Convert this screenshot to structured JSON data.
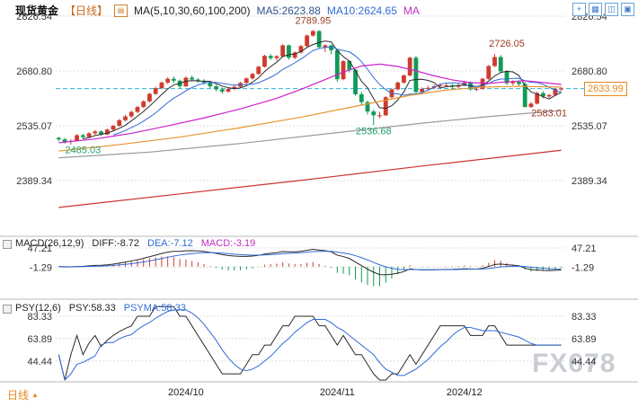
{
  "header": {
    "title": "现货黄金",
    "period": "【日线】",
    "snapshot_glyph": "▤",
    "ma_settings": "MA(5,10,30,60,100,200)",
    "ma5": "MA5:2623.88",
    "ma10": "MA10:2624.65",
    "ma_more": "MA"
  },
  "toolbar": {
    "icons": [
      {
        "name": "add-indicator-icon",
        "glyph": "+"
      },
      {
        "name": "grid-view-icon",
        "glyph": "▦"
      },
      {
        "name": "split-view-icon",
        "glyph": "◫"
      },
      {
        "name": "fullscreen-icon",
        "glyph": "▣"
      }
    ]
  },
  "price_box": {
    "value": "2633.99"
  },
  "macd_header": {
    "label": "MACD(26,12,9)",
    "diff": "DIFF:-8.72",
    "dea": "DEA:-7.12",
    "macd": "MACD:-3.19"
  },
  "psy_header": {
    "label": "PSY(12,6)",
    "psy": "PSY:58.33",
    "psyma": "PSYMA:58.33"
  },
  "footer": {
    "period": "日线",
    "arrow": "▲",
    "watermark": "FX678"
  },
  "chart_data": {
    "type": "candlestick",
    "title": "现货黄金 日线 (Spot Gold Daily)",
    "colors": {
      "up": "#cf3b2e",
      "down": "#129a57",
      "grid": "#dcdcdc",
      "axis_text": "#333333",
      "dashed_line": "#2ab2d9",
      "divider": "#b9b9b9"
    },
    "main": {
      "y_ticks": [
        2826.54,
        2680.8,
        2535.07,
        2389.34
      ],
      "y_range": [
        2826.54,
        2253.0
      ],
      "current_price": 2633.99,
      "annotations": [
        {
          "text": "2789.95",
          "index": 42,
          "price": 2806,
          "color": "#9c3a22"
        },
        {
          "text": "2726.05",
          "index": 74,
          "price": 2745,
          "color": "#9c3a22"
        },
        {
          "text": "2583.01",
          "index": 81,
          "price": 2560,
          "color": "#9c3a22"
        },
        {
          "text": "2536.68",
          "index": 52,
          "price": 2512,
          "color": "#1f9e6a"
        },
        {
          "text": "2485.03",
          "index": 4,
          "price": 2462,
          "color": "#1f9e6a"
        }
      ],
      "candles": [
        [
          2503,
          2506,
          2494,
          2499
        ],
        [
          2499,
          2503,
          2488,
          2493
        ],
        [
          2493,
          2499,
          2485,
          2495
        ],
        [
          2495,
          2513,
          2493,
          2510
        ],
        [
          2510,
          2514,
          2500,
          2505
        ],
        [
          2505,
          2518,
          2503,
          2515
        ],
        [
          2515,
          2524,
          2511,
          2520
        ],
        [
          2520,
          2523,
          2508,
          2512
        ],
        [
          2512,
          2528,
          2510,
          2525
        ],
        [
          2525,
          2538,
          2522,
          2535
        ],
        [
          2535,
          2553,
          2533,
          2550
        ],
        [
          2550,
          2564,
          2547,
          2560
        ],
        [
          2560,
          2575,
          2556,
          2572
        ],
        [
          2572,
          2588,
          2569,
          2585
        ],
        [
          2585,
          2603,
          2582,
          2600
        ],
        [
          2600,
          2623,
          2597,
          2620
        ],
        [
          2620,
          2639,
          2617,
          2635
        ],
        [
          2635,
          2653,
          2632,
          2650
        ],
        [
          2650,
          2664,
          2646,
          2660
        ],
        [
          2660,
          2666,
          2649,
          2655
        ],
        [
          2655,
          2658,
          2635,
          2640
        ],
        [
          2640,
          2666,
          2638,
          2663
        ],
        [
          2663,
          2669,
          2653,
          2658
        ],
        [
          2658,
          2662,
          2649,
          2655
        ],
        [
          2655,
          2659,
          2644,
          2650
        ],
        [
          2650,
          2653,
          2635,
          2640
        ],
        [
          2640,
          2644,
          2627,
          2632
        ],
        [
          2632,
          2637,
          2620,
          2626
        ],
        [
          2626,
          2637,
          2623,
          2633
        ],
        [
          2633,
          2643,
          2630,
          2639
        ],
        [
          2639,
          2652,
          2636,
          2649
        ],
        [
          2649,
          2664,
          2646,
          2661
        ],
        [
          2661,
          2676,
          2658,
          2673
        ],
        [
          2673,
          2695,
          2670,
          2692
        ],
        [
          2692,
          2724,
          2690,
          2721
        ],
        [
          2721,
          2726,
          2710,
          2715
        ],
        [
          2715,
          2723,
          2708,
          2720
        ],
        [
          2720,
          2752,
          2717,
          2749
        ],
        [
          2749,
          2751,
          2711,
          2716
        ],
        [
          2716,
          2733,
          2712,
          2730
        ],
        [
          2730,
          2750,
          2727,
          2747
        ],
        [
          2747,
          2778,
          2744,
          2775
        ],
        [
          2775,
          2790,
          2772,
          2787
        ],
        [
          2787,
          2789,
          2740,
          2744
        ],
        [
          2744,
          2752,
          2731,
          2749
        ],
        [
          2749,
          2751,
          2725,
          2736
        ],
        [
          2736,
          2738,
          2652,
          2659
        ],
        [
          2659,
          2710,
          2656,
          2707
        ],
        [
          2707,
          2710,
          2677,
          2684
        ],
        [
          2684,
          2686,
          2615,
          2619
        ],
        [
          2619,
          2626,
          2589,
          2598
        ],
        [
          2598,
          2602,
          2565,
          2573
        ],
        [
          2573,
          2578,
          2537,
          2563
        ],
        [
          2563,
          2572,
          2555,
          2563
        ],
        [
          2563,
          2614,
          2561,
          2611
        ],
        [
          2611,
          2635,
          2608,
          2632
        ],
        [
          2632,
          2653,
          2629,
          2650
        ],
        [
          2650,
          2672,
          2647,
          2669
        ],
        [
          2669,
          2719,
          2666,
          2716
        ],
        [
          2716,
          2721,
          2620,
          2625
        ],
        [
          2625,
          2637,
          2619,
          2633
        ],
        [
          2633,
          2641,
          2627,
          2636
        ],
        [
          2636,
          2645,
          2632,
          2640
        ],
        [
          2640,
          2648,
          2636,
          2643
        ],
        [
          2643,
          2649,
          2638,
          2643
        ],
        [
          2643,
          2646,
          2633,
          2639
        ],
        [
          2639,
          2648,
          2635,
          2643
        ],
        [
          2643,
          2655,
          2640,
          2650
        ],
        [
          2650,
          2653,
          2628,
          2632
        ],
        [
          2632,
          2638,
          2627,
          2633
        ],
        [
          2633,
          2663,
          2631,
          2660
        ],
        [
          2660,
          2697,
          2657,
          2694
        ],
        [
          2694,
          2726,
          2691,
          2718
        ],
        [
          2718,
          2723,
          2675,
          2680
        ],
        [
          2680,
          2683,
          2644,
          2648
        ],
        [
          2648,
          2656,
          2643,
          2652
        ],
        [
          2652,
          2656,
          2639,
          2646
        ],
        [
          2646,
          2652,
          2584,
          2585
        ],
        [
          2585,
          2598,
          2583,
          2594
        ],
        [
          2594,
          2626,
          2592,
          2622
        ],
        [
          2622,
          2627,
          2608,
          2613
        ],
        [
          2613,
          2620,
          2609,
          2617
        ],
        [
          2617,
          2636,
          2614,
          2633
        ],
        [
          2633,
          2639,
          2627,
          2634
        ]
      ],
      "ma_computed": [
        {
          "name": "MA5",
          "period": 5,
          "color": "#2a2a2a"
        },
        {
          "name": "MA10",
          "period": 10,
          "color": "#2f6bd8"
        }
      ],
      "ma_overlays": [
        {
          "name": "MA30",
          "color": "#cc22cc",
          "points": [
            [
              0,
              2490
            ],
            [
              6,
              2500
            ],
            [
              12,
              2515
            ],
            [
              18,
              2535
            ],
            [
              24,
              2556
            ],
            [
              30,
              2580
            ],
            [
              36,
              2608
            ],
            [
              40,
              2632
            ],
            [
              44,
              2658
            ],
            [
              47,
              2678
            ],
            [
              50,
              2694
            ],
            [
              53,
              2699
            ],
            [
              56,
              2693
            ],
            [
              59,
              2681
            ],
            [
              62,
              2668
            ],
            [
              65,
              2657
            ],
            [
              68,
              2650
            ],
            [
              71,
              2648
            ],
            [
              74,
              2652
            ],
            [
              77,
              2655
            ],
            [
              80,
              2650
            ],
            [
              83,
              2645
            ]
          ]
        },
        {
          "name": "MA60",
          "color": "#e8962e",
          "points": [
            [
              0,
              2468
            ],
            [
              10,
              2485
            ],
            [
              20,
              2505
            ],
            [
              30,
              2530
            ],
            [
              40,
              2558
            ],
            [
              50,
              2590
            ],
            [
              58,
              2616
            ],
            [
              64,
              2630
            ],
            [
              70,
              2638
            ],
            [
              76,
              2640
            ],
            [
              83,
              2638
            ]
          ]
        },
        {
          "name": "MA100",
          "color": "#9a9a9a",
          "points": [
            [
              0,
              2450
            ],
            [
              15,
              2465
            ],
            [
              30,
              2488
            ],
            [
              45,
              2515
            ],
            [
              60,
              2542
            ],
            [
              70,
              2558
            ],
            [
              83,
              2576
            ]
          ]
        },
        {
          "name": "MA200",
          "color": "#cc3333",
          "points": [
            [
              0,
              2318
            ],
            [
              20,
              2354
            ],
            [
              40,
              2390
            ],
            [
              60,
              2428
            ],
            [
              83,
              2470
            ]
          ]
        }
      ]
    },
    "macd": {
      "params": [
        26,
        12,
        9
      ],
      "diff": -8.72,
      "dea": -7.12,
      "macd": -3.19,
      "y_ticks": [
        47.21,
        -1.29
      ],
      "y_range": [
        70,
        -78
      ],
      "diff_color": "#2a2a2a",
      "dea_color": "#2f6bd8"
    },
    "psy": {
      "params": [
        12,
        6
      ],
      "psy": 58.33,
      "psyma": 58.33,
      "y_ticks": [
        83.33,
        63.89,
        44.44
      ],
      "y_range": [
        95,
        28
      ],
      "psy_color": "#2a2a2a",
      "psyma_color": "#2f6bd8"
    },
    "x_axis": {
      "labels": [
        {
          "text": "2024/10",
          "index": 21
        },
        {
          "text": "2024/11",
          "index": 46
        },
        {
          "text": "2024/12",
          "index": 67
        }
      ]
    }
  }
}
